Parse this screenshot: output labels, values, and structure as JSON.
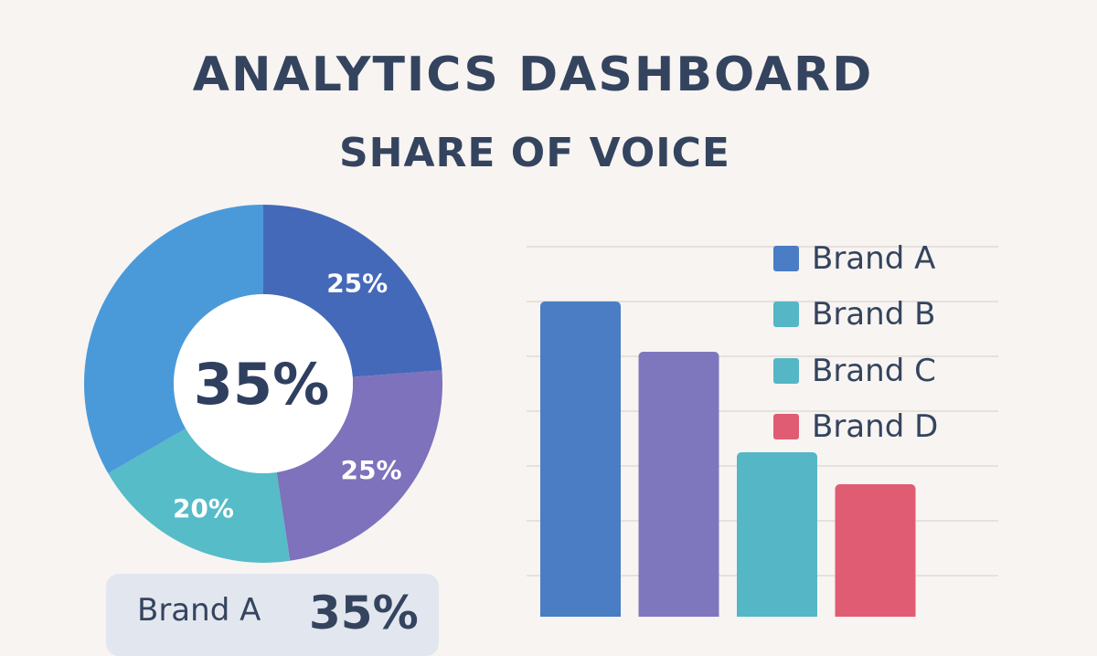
{
  "header": {
    "title": "ANALYTICS DASHBOARD",
    "subtitle": "SHARE OF VOICE"
  },
  "chart_data": [
    {
      "type": "pie",
      "style": "donut",
      "center_label": "35%",
      "slices": [
        {
          "value": 25,
          "label": "25%",
          "color": "#4569b9"
        },
        {
          "value": 25,
          "label": "25%",
          "color": "#7d72bb"
        },
        {
          "value": 20,
          "label": "20%",
          "color": "#55bcc8"
        },
        {
          "value": 35,
          "label": "",
          "color": "#4a9ada"
        }
      ]
    },
    {
      "type": "bar",
      "categories": [
        "Brand A",
        "Brand B",
        "Brand C",
        "Brand D"
      ],
      "series": [
        {
          "values": [
            36,
            30.5,
            19.5,
            16
          ]
        }
      ],
      "colors": [
        "#4a7dc3",
        "#7f77bd",
        "#55b6c6",
        "#e05c72"
      ],
      "ylim": [
        0,
        42
      ],
      "grid": true,
      "tick_step": 6,
      "legend": {
        "position": "top-right",
        "items": [
          {
            "label": "Brand A",
            "color": "#4a7dc3"
          },
          {
            "label": "Brand B",
            "color": "#55b6c6"
          },
          {
            "label": "Brand C",
            "color": "#55b6c6"
          },
          {
            "label": "Brand D",
            "color": "#e05c72"
          }
        ]
      }
    }
  ],
  "info_card": {
    "label": "Brand A",
    "value": "35%"
  }
}
